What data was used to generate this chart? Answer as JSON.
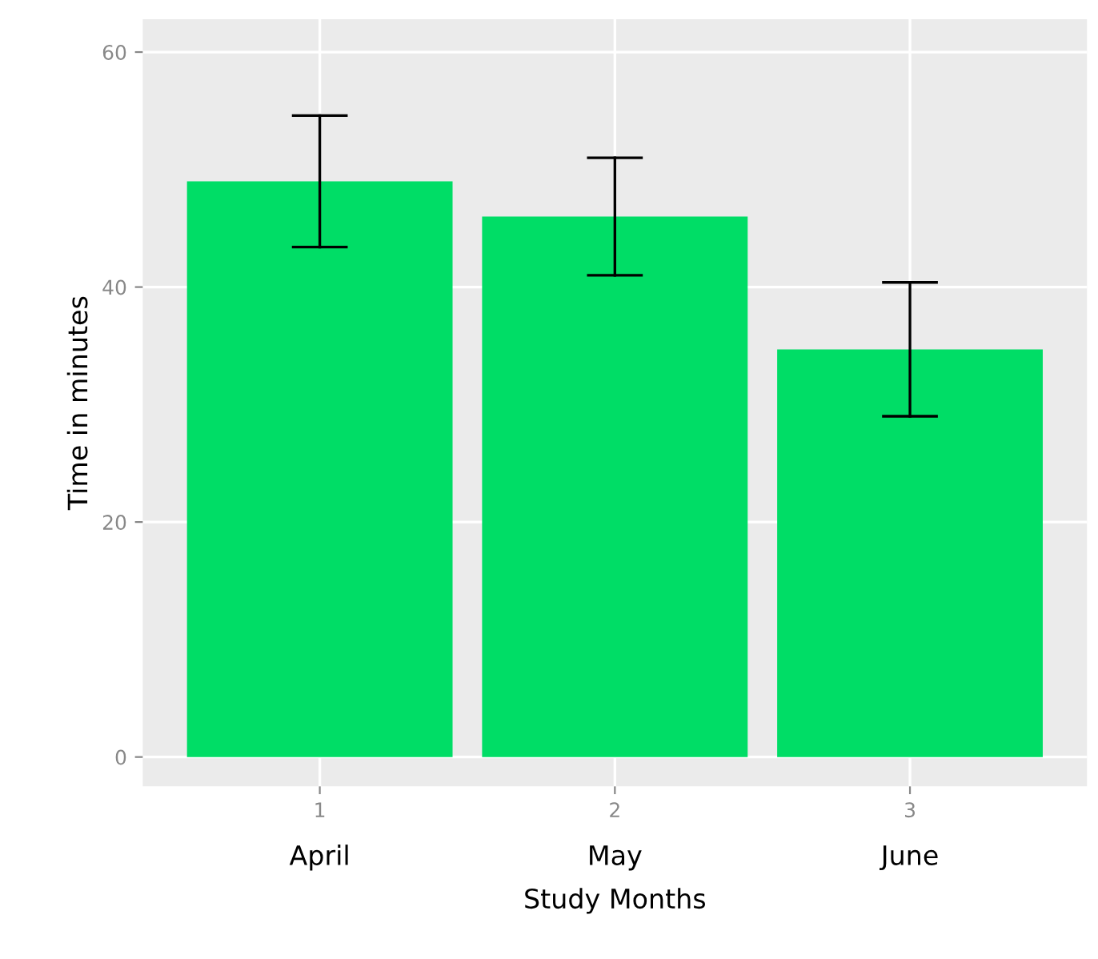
{
  "chart_data": {
    "type": "bar",
    "categories": [
      "1",
      "2",
      "3"
    ],
    "values": [
      49,
      46,
      34.7
    ],
    "errors": [
      5.6,
      5.0,
      5.7
    ],
    "color": "#00dd66",
    "xlabel": "Study Months",
    "ylabel": "Time in minutes",
    "annotations": [
      "April",
      "May",
      "June"
    ],
    "ylim": [
      -2.5,
      62.8
    ],
    "yticks": [
      0,
      20,
      40,
      60
    ],
    "grid": true
  }
}
